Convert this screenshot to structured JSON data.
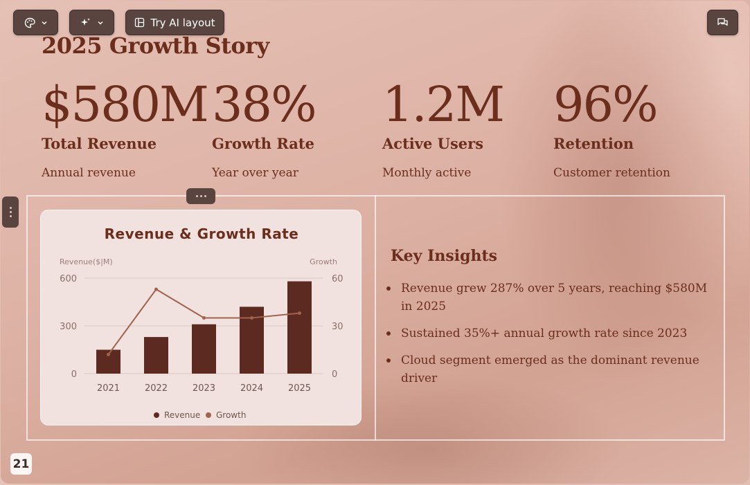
{
  "toolbar": {
    "theme_icon": "palette-icon",
    "ai_icon": "sparkle-icon",
    "try_ai_label": "Try AI layout",
    "comment_icon": "comments-icon"
  },
  "slide": {
    "title": "2025 Growth Story",
    "stats": [
      {
        "value": "$580M",
        "label": "Total Revenue",
        "desc": "Annual revenue"
      },
      {
        "value": "38%",
        "label": "Growth Rate",
        "desc": "Year over year"
      },
      {
        "value": "1.2M",
        "label": "Active Users",
        "desc": "Monthly active"
      },
      {
        "value": "96%",
        "label": "Retention",
        "desc": "Customer retention"
      }
    ],
    "insights": {
      "title": "Key Insights",
      "items": [
        "Revenue grew 287% over 5 years, reaching $580M in 2025",
        "Sustained 35%+ annual growth rate since 2023",
        "Cloud segment emerged as the dominant revenue driver"
      ]
    },
    "page_number": "21"
  },
  "colors": {
    "accent": "#6b2d1c",
    "bar": "#5c2a20",
    "line": "#a0634e",
    "toolbar_bg": "#5a4440"
  },
  "chart_data": {
    "type": "bar",
    "title": "Revenue & Growth Rate",
    "ylabel": "Revenue($|M)",
    "y2label": "Growth",
    "categories": [
      "2021",
      "2022",
      "2023",
      "2024",
      "2025"
    ],
    "ylim": [
      0,
      600
    ],
    "yticks": [
      "600",
      "300",
      "0"
    ],
    "y2lim": [
      0,
      60
    ],
    "y2ticks": [
      "60",
      "30",
      "0"
    ],
    "series": [
      {
        "name": "Revenue",
        "type": "bar",
        "axis": "left",
        "values": [
          150,
          230,
          310,
          420,
          580
        ]
      },
      {
        "name": "Growth",
        "type": "line",
        "axis": "right",
        "values": [
          12,
          53,
          35,
          35,
          38
        ]
      }
    ],
    "legend": "bottom",
    "grid": true
  }
}
